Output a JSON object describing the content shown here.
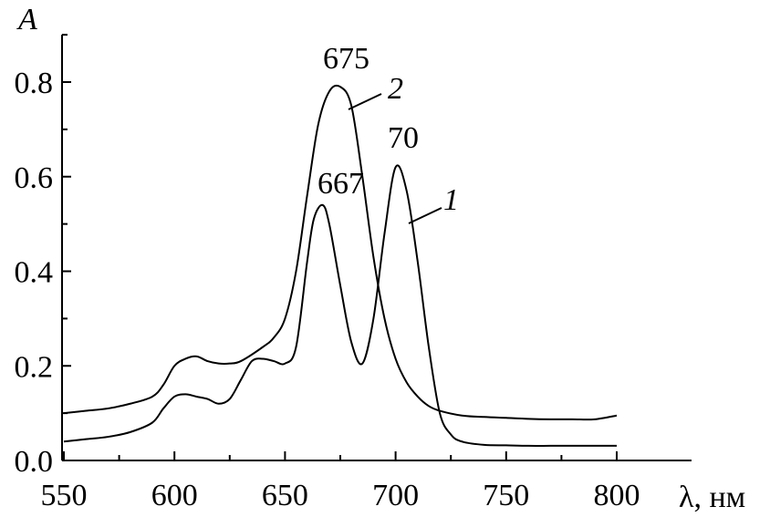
{
  "chart_data": {
    "type": "line",
    "xlabel": "λ, нм",
    "ylabel": "A",
    "xlim": [
      550,
      825
    ],
    "ylim": [
      0.0,
      0.95
    ],
    "x_ticks": [
      550,
      600,
      650,
      700,
      750,
      800
    ],
    "x_tick_labels": [
      "550",
      "600",
      "650",
      "700",
      "750",
      "800"
    ],
    "y_ticks": [
      0.0,
      0.2,
      0.4,
      0.6,
      0.8
    ],
    "y_tick_labels": [
      "0.0",
      "0.2",
      "0.4",
      "0.6",
      "0.8"
    ],
    "grid": false,
    "series": [
      {
        "label": "1",
        "x": [
          550,
          560,
          570,
          580,
          590,
          595,
          600,
          605,
          610,
          615,
          620,
          625,
          630,
          635,
          640,
          645,
          650,
          655,
          660,
          663,
          667,
          670,
          675,
          680,
          685,
          690,
          695,
          700,
          705,
          710,
          715,
          720,
          725,
          730,
          740,
          750,
          760,
          770,
          780,
          790,
          800
        ],
        "y": [
          0.04,
          0.045,
          0.05,
          0.06,
          0.08,
          0.11,
          0.135,
          0.14,
          0.135,
          0.13,
          0.12,
          0.13,
          0.17,
          0.21,
          0.215,
          0.21,
          0.205,
          0.24,
          0.42,
          0.51,
          0.54,
          0.5,
          0.37,
          0.25,
          0.205,
          0.3,
          0.48,
          0.62,
          0.57,
          0.42,
          0.24,
          0.1,
          0.055,
          0.04,
          0.033,
          0.032,
          0.031,
          0.031,
          0.031,
          0.031,
          0.031
        ]
      },
      {
        "label": "2",
        "x": [
          550,
          560,
          570,
          580,
          590,
          595,
          600,
          605,
          610,
          615,
          620,
          625,
          630,
          640,
          645,
          650,
          655,
          660,
          665,
          670,
          675,
          680,
          685,
          690,
          695,
          700,
          705,
          710,
          715,
          720,
          730,
          740,
          750,
          760,
          770,
          780,
          790,
          800
        ],
        "y": [
          0.1,
          0.105,
          0.11,
          0.12,
          0.135,
          0.16,
          0.2,
          0.215,
          0.22,
          0.21,
          0.205,
          0.205,
          0.21,
          0.24,
          0.26,
          0.3,
          0.4,
          0.56,
          0.71,
          0.78,
          0.79,
          0.75,
          0.6,
          0.43,
          0.3,
          0.215,
          0.165,
          0.135,
          0.115,
          0.105,
          0.095,
          0.092,
          0.09,
          0.088,
          0.087,
          0.087,
          0.087,
          0.095
        ]
      }
    ],
    "annotations": {
      "peak_675": "675",
      "peak_70": "70",
      "peak_667": "667",
      "curve_1": "1",
      "curve_2": "2"
    }
  }
}
